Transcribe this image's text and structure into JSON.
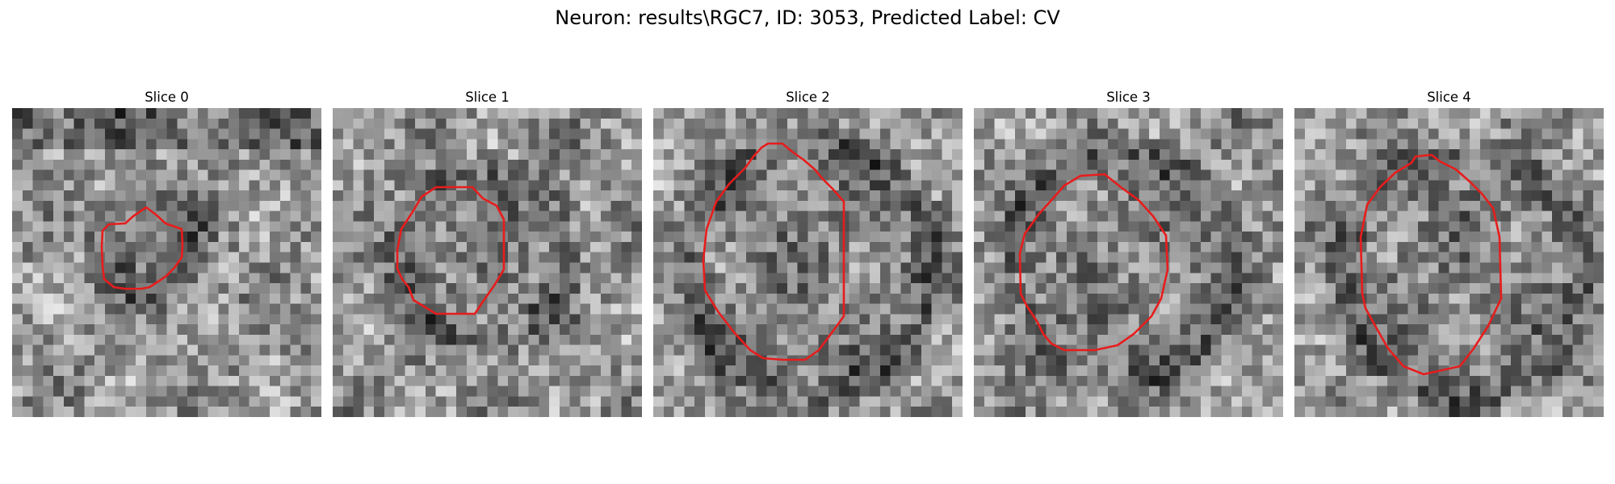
{
  "figure": {
    "title": "Neuron: results\\RGC7, ID: 3053, Predicted Label: CV"
  },
  "colors": {
    "contour": "#e81c1c",
    "background": "#ffffff"
  },
  "panels": [
    {
      "title": "Slice 0"
    },
    {
      "title": "Slice 1"
    },
    {
      "title": "Slice 2"
    },
    {
      "title": "Slice 3"
    },
    {
      "title": "Slice 4"
    }
  ]
}
